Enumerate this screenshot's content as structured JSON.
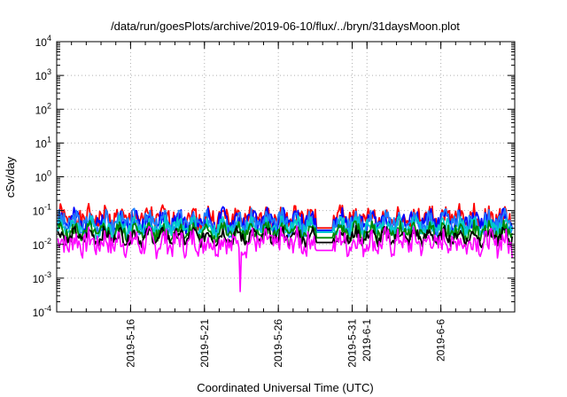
{
  "chart_data": {
    "type": "line",
    "title": "/data/run/goesPlots/archive/2019-06-10/flux/../bryn/31daysMoon.plot",
    "xlabel": "Coordinated Universal Time (UTC)",
    "ylabel": "cSv/day",
    "y_scale": "log",
    "ylim": [
      0.0001,
      10000
    ],
    "xlim": [
      "2019-05-11T00:00",
      "2019-06-11T00:00"
    ],
    "x_ticks": [
      {
        "date": "2019-05-16",
        "label": "2019-5-16"
      },
      {
        "date": "2019-05-21",
        "label": "2019-5-21"
      },
      {
        "date": "2019-05-26",
        "label": "2019-5-26"
      },
      {
        "date": "2019-05-31",
        "label": "2019-5-31"
      },
      {
        "date": "2019-06-01",
        "label": "2019-6-1"
      },
      {
        "date": "2019-06-06",
        "label": "2019-6-6"
      }
    ],
    "y_ticks": [
      {
        "value": 0.0001,
        "base": "10",
        "exp": "-4"
      },
      {
        "value": 0.001,
        "base": "10",
        "exp": "-3"
      },
      {
        "value": 0.01,
        "base": "10",
        "exp": "-2"
      },
      {
        "value": 0.1,
        "base": "10",
        "exp": "-1"
      },
      {
        "value": 1,
        "base": "10",
        "exp": "0"
      },
      {
        "value": 10,
        "base": "10",
        "exp": "1"
      },
      {
        "value": 100,
        "base": "10",
        "exp": "2"
      },
      {
        "value": 1000,
        "base": "10",
        "exp": "3"
      },
      {
        "value": 10000,
        "base": "10",
        "exp": "4"
      }
    ],
    "grid": true,
    "legend": "none",
    "gap": [
      "2019-05-28T12:00",
      "2019-05-29T18:00"
    ],
    "series": [
      {
        "color": "#ff0000",
        "base": 0.05,
        "amp": 2.1,
        "dip": -0.72,
        "seed": 1
      },
      {
        "color": "#0000ff",
        "base": 0.04,
        "amp": 2.0,
        "dip": -0.62,
        "seed": 2
      },
      {
        "color": "#1e7fff",
        "base": 0.035,
        "amp": 2.2,
        "dip": -0.55,
        "seed": 3
      },
      {
        "color": "#00cccc",
        "base": 0.028,
        "amp": 1.6,
        "dip": -0.3,
        "seed": 4
      },
      {
        "color": "#008800",
        "base": 0.02,
        "amp": 1.5,
        "dip": -0.35,
        "seed": 5
      },
      {
        "color": "#000000",
        "base": 0.015,
        "amp": 1.3,
        "dip": -0.4,
        "seed": 6
      },
      {
        "color": "#ff00ff",
        "base": 0.009,
        "amp": 2.5,
        "dip": -0.45,
        "seed": 7,
        "spike": [
          "2019-05-23T10:00",
          0.0004
        ]
      }
    ]
  }
}
